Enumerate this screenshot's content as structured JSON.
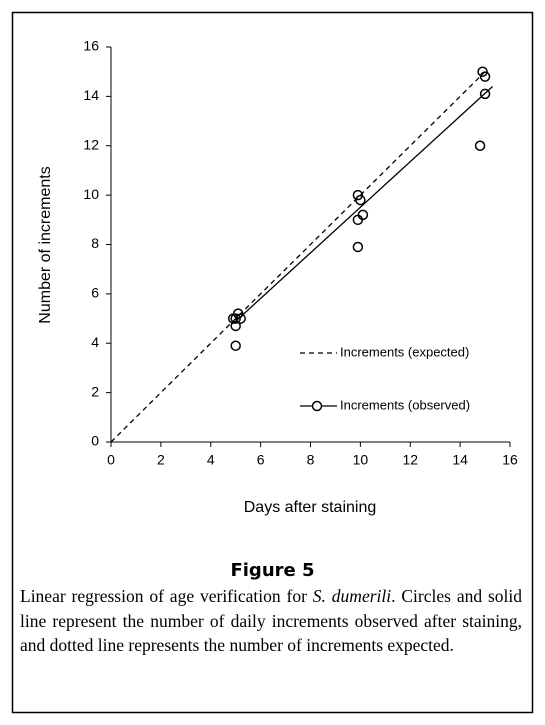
{
  "chart_data": {
    "type": "scatter",
    "x_label": "Days after staining",
    "y_label": "Number of increments",
    "xlim": [
      0,
      16
    ],
    "ylim": [
      0,
      16
    ],
    "xticks": [
      0,
      2,
      4,
      6,
      8,
      10,
      12,
      14,
      16
    ],
    "yticks": [
      0,
      2,
      4,
      6,
      8,
      10,
      12,
      14,
      16
    ],
    "series": [
      {
        "name": "Increments (expected)",
        "color": "#000000",
        "line_style": "dashed",
        "markers": false,
        "x": [
          0,
          15
        ],
        "values": [
          0,
          15
        ]
      },
      {
        "name": "Increments (observed)",
        "color": "#000000",
        "line_style": "solid",
        "markers": true,
        "x": [
          4.9,
          5.0,
          5.0,
          5.0,
          5.1,
          5.2,
          9.9,
          10.0,
          10.1,
          9.9,
          9.9,
          14.8,
          15.0,
          15.0,
          14.9
        ],
        "values": [
          5.0,
          3.9,
          4.7,
          5.0,
          5.2,
          5.0,
          10.0,
          9.8,
          9.2,
          9.0,
          7.9,
          12.0,
          14.1,
          14.8,
          15.0
        ],
        "fit": {
          "x": [
            4.9,
            15.3
          ],
          "values": [
            4.8,
            14.4
          ]
        }
      }
    ]
  },
  "figure_label": "Figure 5",
  "caption": [
    "Linear regression of age verification for ",
    "S. dumerili",
    ". Circles and solid line represent the number of daily increments observed after staining, and dotted line represents the number of increments expected."
  ]
}
